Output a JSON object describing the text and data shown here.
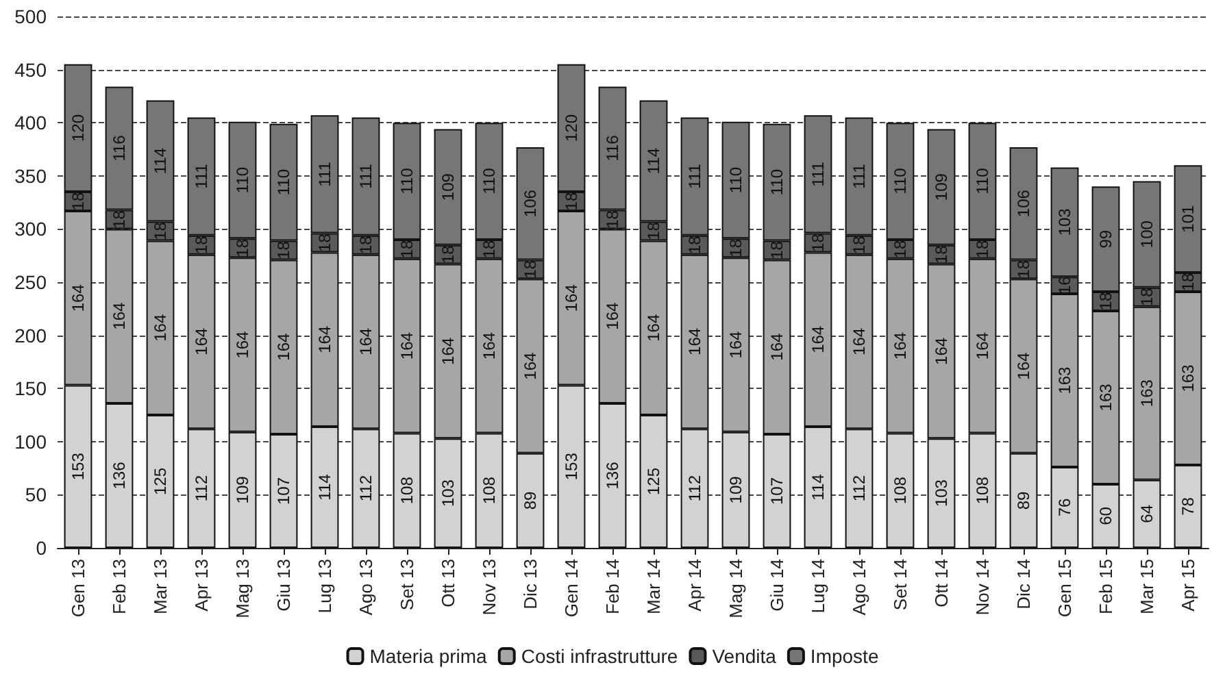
{
  "chart_data": {
    "type": "bar",
    "stacked": true,
    "data_labels": true,
    "categories": [
      "Gen 13",
      "Feb 13",
      "Mar 13",
      "Apr 13",
      "Mag 13",
      "Giu 13",
      "Lug 13",
      "Ago 13",
      "Set 13",
      "Ott 13",
      "Nov 13",
      "Dic 13",
      "Gen 14",
      "Feb 14",
      "Mar 14",
      "Apr 14",
      "Mag 14",
      "Giu 14",
      "Lug 14",
      "Ago 14",
      "Set 14",
      "Ott 14",
      "Nov 14",
      "Dic 14",
      "Gen 15",
      "Feb 15",
      "Mar 15",
      "Apr 15"
    ],
    "series": [
      {
        "name": "Materia prima",
        "color": "#d2d2d2",
        "values": [
          153,
          136,
          125,
          112,
          109,
          107,
          114,
          112,
          108,
          103,
          108,
          89,
          153,
          136,
          125,
          112,
          109,
          107,
          114,
          112,
          108,
          103,
          108,
          89,
          76,
          60,
          64,
          78
        ]
      },
      {
        "name": "Costi infrastrutture",
        "color": "#a6a6a6",
        "values": [
          164,
          164,
          164,
          164,
          164,
          164,
          164,
          164,
          164,
          164,
          164,
          164,
          164,
          164,
          164,
          164,
          164,
          164,
          164,
          164,
          164,
          164,
          164,
          164,
          163,
          163,
          163,
          163
        ]
      },
      {
        "name": "Vendita",
        "color": "#5a5a5a",
        "values": [
          18,
          18,
          18,
          18,
          18,
          18,
          18,
          18,
          18,
          18,
          18,
          18,
          18,
          18,
          18,
          18,
          18,
          18,
          18,
          18,
          18,
          18,
          18,
          18,
          16,
          18,
          18,
          18
        ]
      },
      {
        "name": "Imposte",
        "color": "#767676",
        "values": [
          120,
          116,
          114,
          111,
          110,
          110,
          111,
          111,
          110,
          109,
          110,
          106,
          120,
          116,
          114,
          111,
          110,
          110,
          111,
          111,
          110,
          109,
          110,
          106,
          103,
          99,
          100,
          101
        ]
      }
    ],
    "ylim": [
      0,
      500
    ],
    "yticks": [
      0,
      50,
      100,
      150,
      200,
      250,
      300,
      350,
      400,
      450,
      500
    ],
    "grid": "y",
    "legend": "bottom"
  }
}
